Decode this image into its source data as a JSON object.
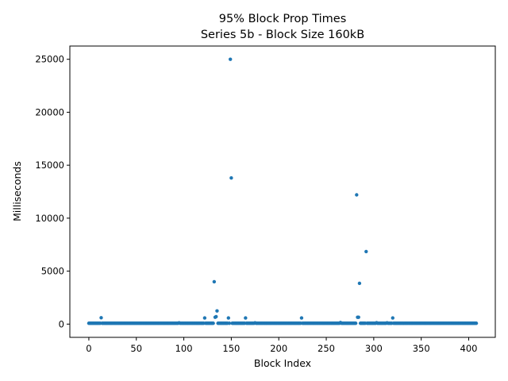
{
  "chart_data": {
    "type": "scatter",
    "title": "95% Block Prop Times",
    "subtitle": "Series 5b - Block Size 160kB",
    "xlabel": "Block Index",
    "ylabel": "Milliseconds",
    "xlim": [
      -20,
      428
    ],
    "ylim": [
      -1250,
      26250
    ],
    "xticks": [
      0,
      50,
      100,
      150,
      200,
      250,
      300,
      350,
      400
    ],
    "yticks": [
      0,
      5000,
      10000,
      15000,
      20000,
      25000
    ],
    "grid": false,
    "legend": "none",
    "marker_color": "#1f77b4",
    "series": [
      {
        "x_range": [
          0,
          408
        ],
        "baseline_y": 80,
        "outliers": [
          [
            13,
            600
          ],
          [
            95,
            120
          ],
          [
            122,
            580
          ],
          [
            132,
            4000
          ],
          [
            133,
            650
          ],
          [
            134,
            700
          ],
          [
            135,
            1250
          ],
          [
            147,
            580
          ],
          [
            149,
            25000
          ],
          [
            150,
            13800
          ],
          [
            165,
            580
          ],
          [
            175,
            120
          ],
          [
            224,
            580
          ],
          [
            265,
            150
          ],
          [
            282,
            12200
          ],
          [
            283,
            650
          ],
          [
            284,
            650
          ],
          [
            285,
            3850
          ],
          [
            292,
            6850
          ],
          [
            303,
            130
          ],
          [
            314,
            120
          ],
          [
            320,
            580
          ]
        ]
      }
    ]
  }
}
